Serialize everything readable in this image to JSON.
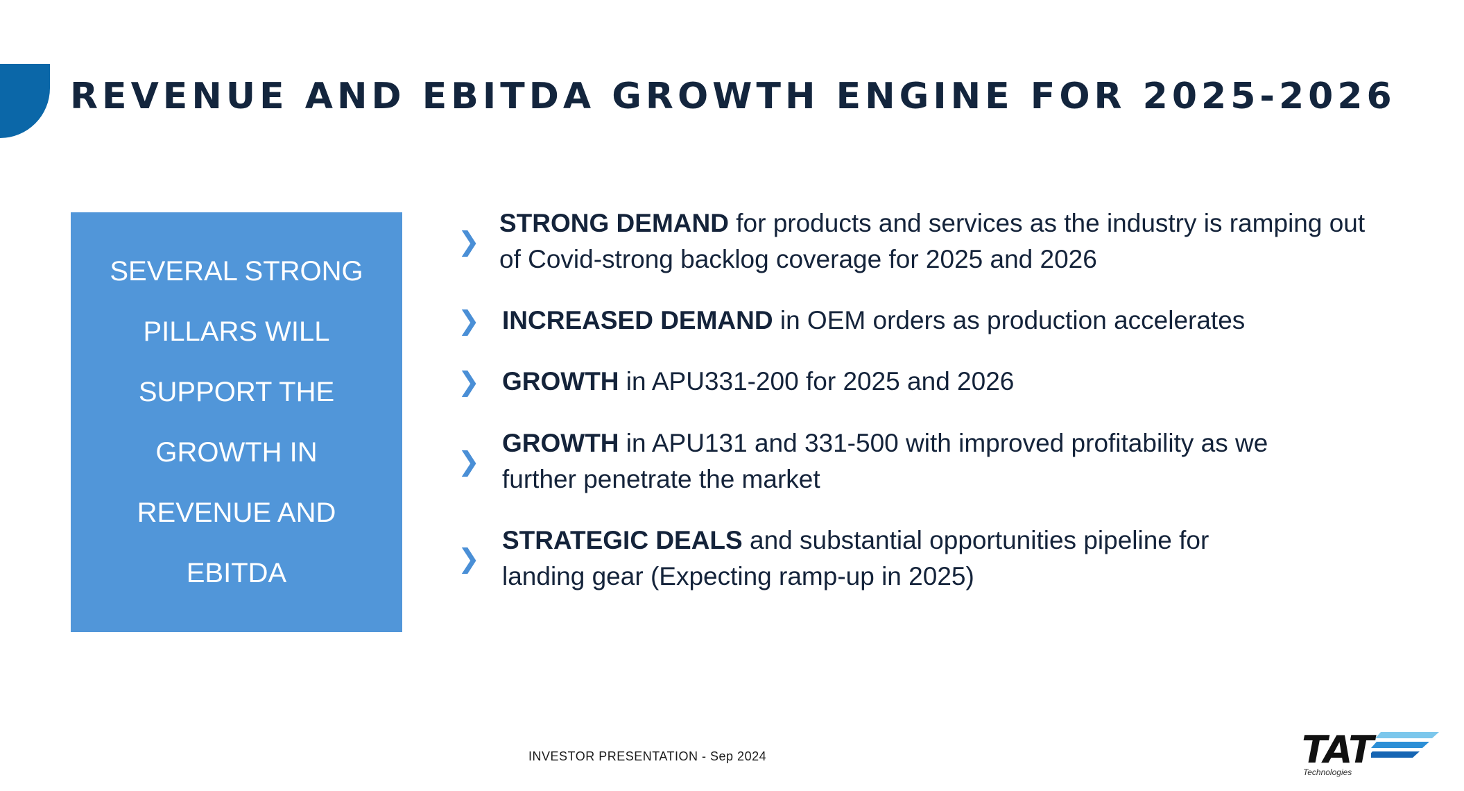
{
  "title": "REVENUE AND EBITDA GROWTH ENGINE FOR 2025-2026",
  "pillar_box": {
    "text": "SEVERAL STRONG PILLARS WILL SUPPORT THE GROWTH IN REVENUE AND EBITDA"
  },
  "bullets": [
    {
      "bold": "STRONG DEMAND",
      "text": " for products and services as the industry is ramping out of Covid-strong backlog coverage for 2025 and 2026"
    },
    {
      "bold": "INCREASED DEMAND",
      "text": " in OEM orders as production accelerates"
    },
    {
      "bold": "GROWTH",
      "text": " in APU331-200 for 2025 and 2026"
    },
    {
      "bold": "GROWTH",
      "text": " in APU131 and 331-500 with improved profitability as we further penetrate the market"
    },
    {
      "bold": "STRATEGIC DEALS",
      "text": " and substantial opportunities pipeline for landing gear (Expecting ramp-up in 2025)"
    }
  ],
  "bullet_icon": "chevron-right-icon",
  "footer": "INVESTOR PRESENTATION - Sep 2024",
  "logo": {
    "word": "TAT",
    "sub": "Technologies"
  },
  "colors": {
    "accent_dark": "#0b67a8",
    "box_fill": "#5196d9",
    "chevron": "#4a8fd6",
    "title": "#13253d"
  }
}
